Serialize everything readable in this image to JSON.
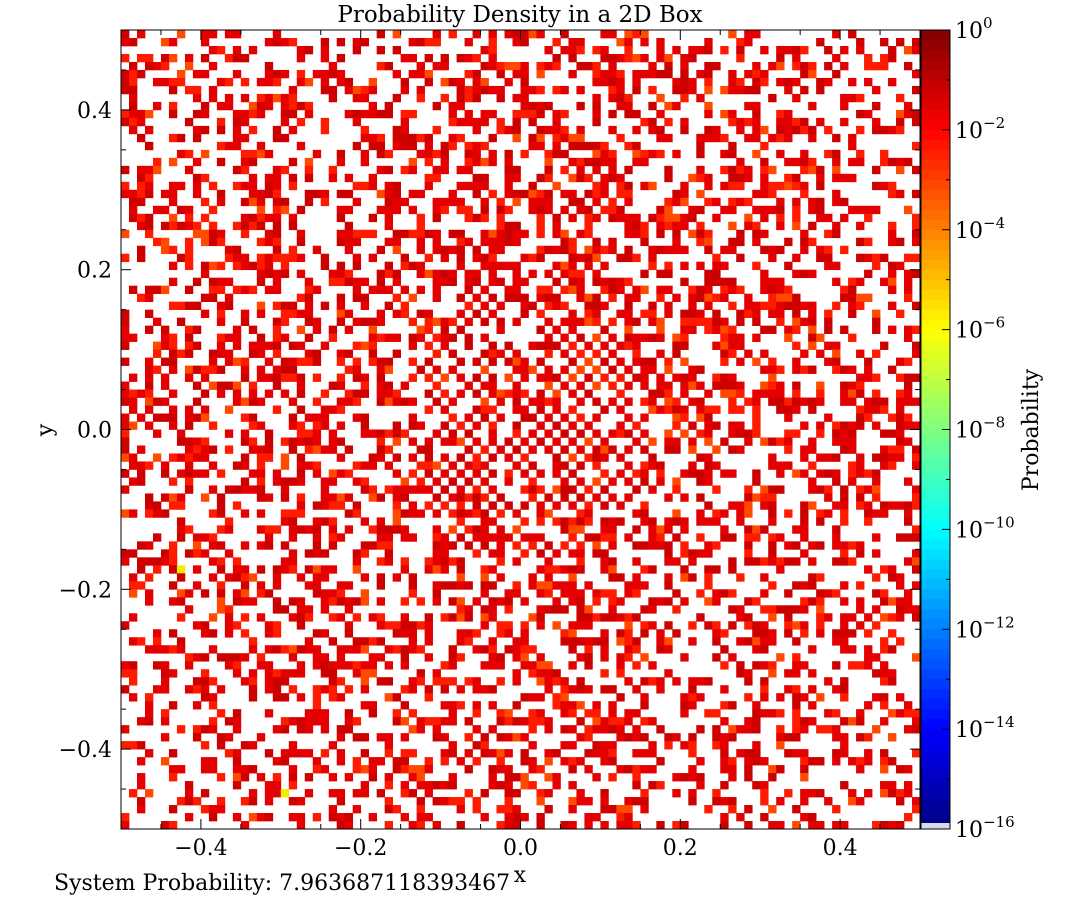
{
  "chart_data": {
    "type": "heatmap",
    "title": "Probability Density in a 2D Box",
    "xlabel": "x",
    "ylabel": "y",
    "xlim": [
      -0.5,
      0.5
    ],
    "ylim": [
      -0.5,
      0.5
    ],
    "x_ticks": [
      {
        "value": -0.4,
        "label": "−0.4"
      },
      {
        "value": -0.2,
        "label": "−0.2"
      },
      {
        "value": 0.0,
        "label": "0.0"
      },
      {
        "value": 0.2,
        "label": "0.2"
      },
      {
        "value": 0.4,
        "label": "0.4"
      }
    ],
    "y_ticks": [
      {
        "value": 0.4,
        "label": "0.4"
      },
      {
        "value": 0.2,
        "label": "0.2"
      },
      {
        "value": 0.0,
        "label": "0.0"
      },
      {
        "value": -0.2,
        "label": "−0.2"
      },
      {
        "value": -0.4,
        "label": "−0.4"
      }
    ],
    "grid_bins": 100,
    "colorbar": {
      "label": "Probability",
      "scale": "log",
      "range": [
        1e-16,
        1
      ],
      "colormap": "jet",
      "ticks": [
        {
          "exp": 0,
          "base": "10",
          "sup": "0"
        },
        {
          "exp": -2,
          "base": "10",
          "sup": "−2"
        },
        {
          "exp": -4,
          "base": "10",
          "sup": "−4"
        },
        {
          "exp": -6,
          "base": "10",
          "sup": "−6"
        },
        {
          "exp": -8,
          "base": "10",
          "sup": "−8"
        },
        {
          "exp": -10,
          "base": "10",
          "sup": "−10"
        },
        {
          "exp": -12,
          "base": "10",
          "sup": "−12"
        },
        {
          "exp": -14,
          "base": "10",
          "sup": "−14"
        },
        {
          "exp": -16,
          "base": "10",
          "sup": "−16"
        }
      ]
    },
    "grid": false,
    "legend": "none"
  },
  "footer": {
    "system_probability": "System Probability: 7.963687118393467"
  }
}
